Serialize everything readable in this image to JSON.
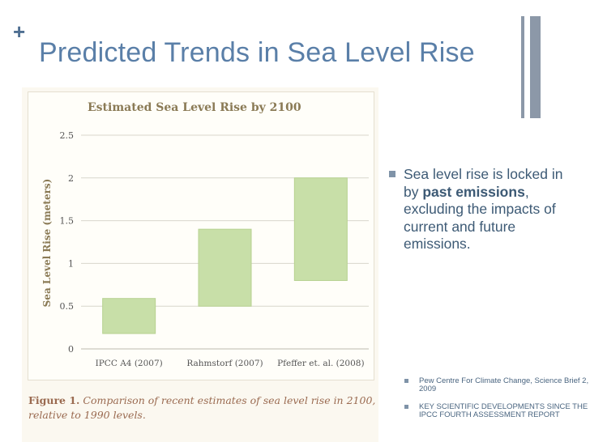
{
  "slide": {
    "title": "Predicted Trends in Sea Level Rise",
    "bullet_main_prefix": "Sea level rise is locked in by ",
    "bullet_main_bold": "past emissions",
    "bullet_main_suffix": ", excluding the impacts of current and future emissions.",
    "references": [
      "Pew Centre For Climate Change, Science Brief 2, 2009",
      "KEY SCIENTIFIC DEVELOPMENTS SINCE THE IPCC FOURTH ASSESSMENT REPORT"
    ],
    "caption_bold": "Figure 1.",
    "caption_rest": "Comparison of recent estimates of sea level rise in 2100, relative to 1990 levels.",
    "colors": {
      "title": "#5a7fa8",
      "bar": "#c8dfa8",
      "bar_stroke": "#b7d291",
      "grid": "#d8d6cc"
    }
  },
  "chart_data": {
    "type": "bar",
    "title": "Estimated Sea Level Rise by 2100",
    "ylabel": "Sea Level Rise (meters)",
    "xlabel": "",
    "ylim": [
      0,
      2.5
    ],
    "yticks": [
      0,
      0.5,
      1,
      1.5,
      2,
      2.5
    ],
    "ytick_labels": [
      "0",
      "0.5",
      "1",
      "1.5",
      "2",
      "2.5"
    ],
    "categories": [
      "IPCC A4 (2007)",
      "Rahmstorf (2007)",
      "Pfeffer et. al. (2008)"
    ],
    "ranges": [
      {
        "low": 0.18,
        "high": 0.59
      },
      {
        "low": 0.5,
        "high": 1.4
      },
      {
        "low": 0.8,
        "high": 2.0
      }
    ],
    "grid": true
  }
}
